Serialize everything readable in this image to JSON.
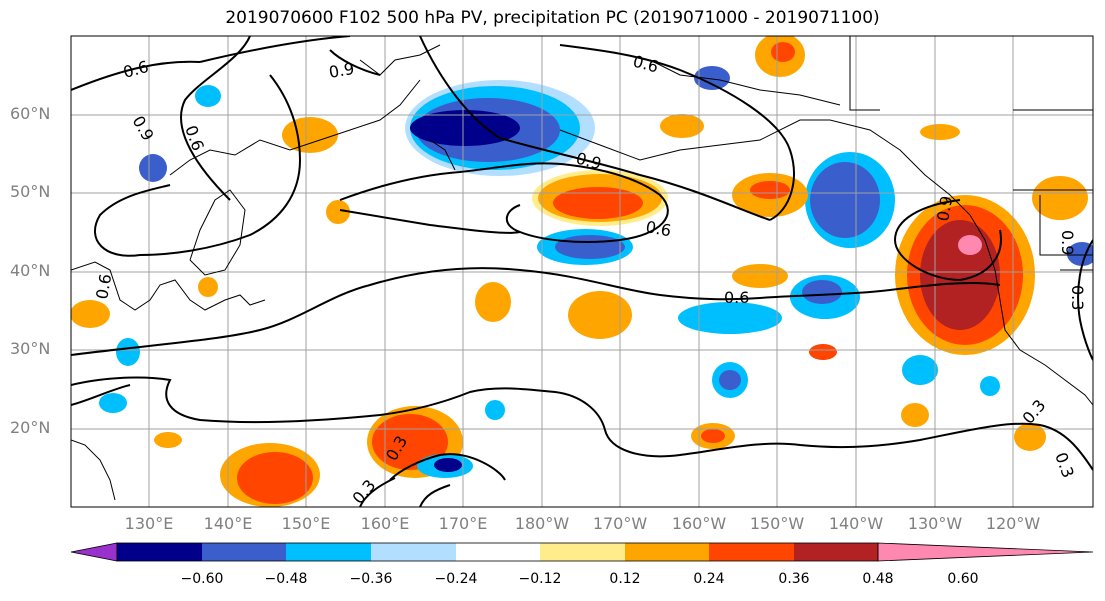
{
  "chart_data": {
    "type": "map",
    "title": "2019070600 F102 500 hPa PV, precipitation PC (2019071000 - 2019071100)",
    "lat_labels": [
      "60°N",
      "50°N",
      "40°N",
      "30°N",
      "20°N"
    ],
    "lon_labels": [
      "130°E",
      "140°E",
      "150°E",
      "160°E",
      "170°E",
      "180°W",
      "170°W",
      "160°W",
      "150°W",
      "140°W",
      "130°W",
      "120°W"
    ],
    "grid": true,
    "colorbar": {
      "ticks": [
        "−0.60",
        "−0.48",
        "−0.36",
        "−0.24",
        "−0.12",
        "0.12",
        "0.24",
        "0.36",
        "0.48",
        "0.60"
      ],
      "bins": [
        {
          "color": "#9932cc"
        },
        {
          "color": "#00008b"
        },
        {
          "color": "#3a5fcd"
        },
        {
          "color": "#00bfff"
        },
        {
          "color": "#b2dfff"
        },
        {
          "color": "#ffffff"
        },
        {
          "color": "#ffec8b"
        },
        {
          "color": "#ffa500"
        },
        {
          "color": "#ff4500"
        },
        {
          "color": "#b22222"
        },
        {
          "color": "#ff88b0"
        }
      ],
      "extend": "both"
    },
    "contour_labels": [
      "0.6",
      "0.9",
      "0.6",
      "0.9",
      "0.6",
      "0.9",
      "0.6",
      "0.9",
      "0.6",
      "0.6",
      "0.9",
      "0.3",
      "0.3",
      "0.3",
      "0.3",
      "0.3"
    ],
    "pv_contour_levels": [
      0.3,
      0.6,
      0.9
    ]
  }
}
